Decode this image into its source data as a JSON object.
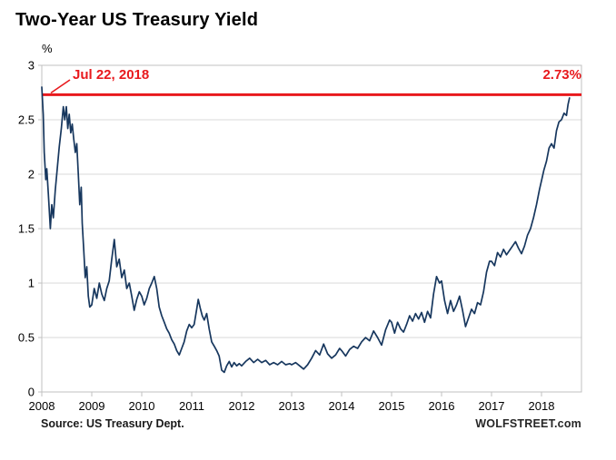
{
  "page": {
    "title": "Two-Year US Treasury Yield"
  },
  "footer": {
    "source": "Source: US Treasury Dept.",
    "brand": "WOLFSTREET.com"
  },
  "colors": {
    "line": "#17375e",
    "highlight": "#e8191d",
    "grid": "#d9d9d9",
    "frame": "#c0c0c0",
    "text": "#000000"
  },
  "chart_data": {
    "type": "line",
    "title": "Two-Year US Treasury Yield",
    "xlabel": "",
    "ylabel": "%",
    "ylim": [
      0,
      3
    ],
    "xlim": [
      2008,
      2018.8
    ],
    "grid": "horizontal",
    "legend": "none",
    "yticks": [
      0,
      0.5,
      1,
      1.5,
      2,
      2.5,
      3
    ],
    "ytick_labels": [
      "0",
      "0.5",
      "1",
      "1.5",
      "2",
      "2.5",
      "3"
    ],
    "xticks": [
      2008,
      2009,
      2010,
      2011,
      2012,
      2013,
      2014,
      2015,
      2016,
      2017,
      2018
    ],
    "xtick_labels": [
      "2008",
      "2009",
      "2010",
      "2011",
      "2012",
      "2013",
      "2014",
      "2015",
      "2016",
      "2017",
      "2018"
    ],
    "reference_line": {
      "value": 2.73,
      "date_label": "Jul 22, 2018",
      "value_label": "2.73%"
    },
    "series": [
      {
        "name": "Two-Year US Treasury Yield",
        "points": [
          [
            2008.0,
            2.8
          ],
          [
            2008.03,
            2.55
          ],
          [
            2008.05,
            2.2
          ],
          [
            2008.08,
            1.95
          ],
          [
            2008.1,
            2.05
          ],
          [
            2008.13,
            1.82
          ],
          [
            2008.17,
            1.5
          ],
          [
            2008.2,
            1.72
          ],
          [
            2008.23,
            1.6
          ],
          [
            2008.27,
            1.85
          ],
          [
            2008.31,
            2.05
          ],
          [
            2008.35,
            2.25
          ],
          [
            2008.39,
            2.42
          ],
          [
            2008.43,
            2.62
          ],
          [
            2008.46,
            2.5
          ],
          [
            2008.49,
            2.62
          ],
          [
            2008.52,
            2.42
          ],
          [
            2008.55,
            2.55
          ],
          [
            2008.58,
            2.38
          ],
          [
            2008.61,
            2.46
          ],
          [
            2008.64,
            2.32
          ],
          [
            2008.67,
            2.2
          ],
          [
            2008.7,
            2.28
          ],
          [
            2008.73,
            2.0
          ],
          [
            2008.76,
            1.72
          ],
          [
            2008.79,
            1.88
          ],
          [
            2008.81,
            1.55
          ],
          [
            2008.84,
            1.3
          ],
          [
            2008.87,
            1.05
          ],
          [
            2008.9,
            1.15
          ],
          [
            2008.93,
            0.88
          ],
          [
            2008.96,
            0.78
          ],
          [
            2009.0,
            0.8
          ],
          [
            2009.05,
            0.95
          ],
          [
            2009.1,
            0.86
          ],
          [
            2009.15,
            1.0
          ],
          [
            2009.2,
            0.9
          ],
          [
            2009.25,
            0.84
          ],
          [
            2009.3,
            0.95
          ],
          [
            2009.35,
            1.02
          ],
          [
            2009.4,
            1.22
          ],
          [
            2009.45,
            1.4
          ],
          [
            2009.5,
            1.15
          ],
          [
            2009.55,
            1.22
          ],
          [
            2009.6,
            1.05
          ],
          [
            2009.65,
            1.12
          ],
          [
            2009.7,
            0.95
          ],
          [
            2009.75,
            1.0
          ],
          [
            2009.8,
            0.88
          ],
          [
            2009.85,
            0.75
          ],
          [
            2009.9,
            0.85
          ],
          [
            2009.95,
            0.92
          ],
          [
            2010.0,
            0.88
          ],
          [
            2010.05,
            0.8
          ],
          [
            2010.1,
            0.86
          ],
          [
            2010.15,
            0.95
          ],
          [
            2010.2,
            1.0
          ],
          [
            2010.25,
            1.06
          ],
          [
            2010.3,
            0.95
          ],
          [
            2010.35,
            0.78
          ],
          [
            2010.4,
            0.7
          ],
          [
            2010.45,
            0.64
          ],
          [
            2010.5,
            0.58
          ],
          [
            2010.55,
            0.54
          ],
          [
            2010.6,
            0.48
          ],
          [
            2010.65,
            0.44
          ],
          [
            2010.7,
            0.38
          ],
          [
            2010.75,
            0.34
          ],
          [
            2010.8,
            0.4
          ],
          [
            2010.85,
            0.46
          ],
          [
            2010.9,
            0.56
          ],
          [
            2010.95,
            0.62
          ],
          [
            2011.0,
            0.59
          ],
          [
            2011.05,
            0.62
          ],
          [
            2011.1,
            0.76
          ],
          [
            2011.13,
            0.85
          ],
          [
            2011.17,
            0.77
          ],
          [
            2011.21,
            0.7
          ],
          [
            2011.25,
            0.66
          ],
          [
            2011.3,
            0.72
          ],
          [
            2011.35,
            0.58
          ],
          [
            2011.4,
            0.46
          ],
          [
            2011.45,
            0.42
          ],
          [
            2011.5,
            0.38
          ],
          [
            2011.55,
            0.33
          ],
          [
            2011.6,
            0.2
          ],
          [
            2011.65,
            0.18
          ],
          [
            2011.7,
            0.24
          ],
          [
            2011.75,
            0.28
          ],
          [
            2011.8,
            0.23
          ],
          [
            2011.85,
            0.27
          ],
          [
            2011.9,
            0.24
          ],
          [
            2011.95,
            0.26
          ],
          [
            2012.0,
            0.24
          ],
          [
            2012.08,
            0.28
          ],
          [
            2012.16,
            0.31
          ],
          [
            2012.24,
            0.27
          ],
          [
            2012.32,
            0.3
          ],
          [
            2012.4,
            0.27
          ],
          [
            2012.48,
            0.29
          ],
          [
            2012.56,
            0.25
          ],
          [
            2012.64,
            0.27
          ],
          [
            2012.72,
            0.25
          ],
          [
            2012.8,
            0.28
          ],
          [
            2012.88,
            0.25
          ],
          [
            2012.96,
            0.26
          ],
          [
            2013.0,
            0.25
          ],
          [
            2013.08,
            0.27
          ],
          [
            2013.16,
            0.24
          ],
          [
            2013.24,
            0.21
          ],
          [
            2013.32,
            0.25
          ],
          [
            2013.4,
            0.31
          ],
          [
            2013.48,
            0.38
          ],
          [
            2013.56,
            0.34
          ],
          [
            2013.64,
            0.44
          ],
          [
            2013.72,
            0.35
          ],
          [
            2013.8,
            0.31
          ],
          [
            2013.88,
            0.34
          ],
          [
            2013.96,
            0.4
          ],
          [
            2014.0,
            0.38
          ],
          [
            2014.08,
            0.33
          ],
          [
            2014.16,
            0.39
          ],
          [
            2014.24,
            0.42
          ],
          [
            2014.32,
            0.4
          ],
          [
            2014.4,
            0.46
          ],
          [
            2014.48,
            0.5
          ],
          [
            2014.56,
            0.47
          ],
          [
            2014.64,
            0.56
          ],
          [
            2014.72,
            0.5
          ],
          [
            2014.8,
            0.43
          ],
          [
            2014.88,
            0.57
          ],
          [
            2014.96,
            0.66
          ],
          [
            2015.0,
            0.64
          ],
          [
            2015.06,
            0.54
          ],
          [
            2015.12,
            0.64
          ],
          [
            2015.18,
            0.58
          ],
          [
            2015.24,
            0.55
          ],
          [
            2015.3,
            0.62
          ],
          [
            2015.36,
            0.7
          ],
          [
            2015.42,
            0.65
          ],
          [
            2015.48,
            0.72
          ],
          [
            2015.54,
            0.67
          ],
          [
            2015.6,
            0.73
          ],
          [
            2015.66,
            0.64
          ],
          [
            2015.72,
            0.74
          ],
          [
            2015.78,
            0.68
          ],
          [
            2015.84,
            0.9
          ],
          [
            2015.9,
            1.06
          ],
          [
            2015.96,
            1.0
          ],
          [
            2016.0,
            1.02
          ],
          [
            2016.06,
            0.84
          ],
          [
            2016.12,
            0.72
          ],
          [
            2016.18,
            0.84
          ],
          [
            2016.24,
            0.74
          ],
          [
            2016.3,
            0.8
          ],
          [
            2016.36,
            0.88
          ],
          [
            2016.42,
            0.75
          ],
          [
            2016.48,
            0.6
          ],
          [
            2016.54,
            0.68
          ],
          [
            2016.6,
            0.76
          ],
          [
            2016.66,
            0.72
          ],
          [
            2016.72,
            0.82
          ],
          [
            2016.78,
            0.8
          ],
          [
            2016.84,
            0.92
          ],
          [
            2016.9,
            1.1
          ],
          [
            2016.96,
            1.2
          ],
          [
            2017.0,
            1.2
          ],
          [
            2017.06,
            1.16
          ],
          [
            2017.12,
            1.28
          ],
          [
            2017.18,
            1.24
          ],
          [
            2017.24,
            1.31
          ],
          [
            2017.3,
            1.26
          ],
          [
            2017.36,
            1.3
          ],
          [
            2017.42,
            1.34
          ],
          [
            2017.48,
            1.38
          ],
          [
            2017.54,
            1.32
          ],
          [
            2017.6,
            1.27
          ],
          [
            2017.66,
            1.34
          ],
          [
            2017.72,
            1.44
          ],
          [
            2017.78,
            1.5
          ],
          [
            2017.84,
            1.6
          ],
          [
            2017.9,
            1.72
          ],
          [
            2017.96,
            1.86
          ],
          [
            2018.0,
            1.94
          ],
          [
            2018.05,
            2.04
          ],
          [
            2018.1,
            2.12
          ],
          [
            2018.15,
            2.24
          ],
          [
            2018.2,
            2.28
          ],
          [
            2018.25,
            2.24
          ],
          [
            2018.3,
            2.4
          ],
          [
            2018.35,
            2.48
          ],
          [
            2018.4,
            2.5
          ],
          [
            2018.45,
            2.56
          ],
          [
            2018.5,
            2.54
          ],
          [
            2018.53,
            2.64
          ],
          [
            2018.56,
            2.7
          ]
        ]
      }
    ]
  }
}
